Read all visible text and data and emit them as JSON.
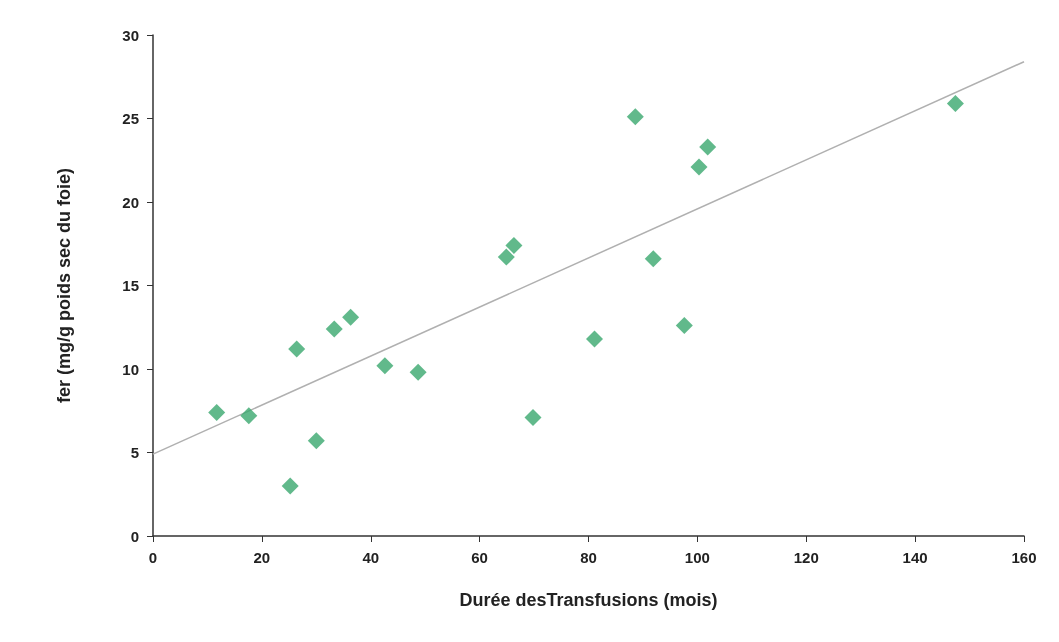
{
  "chart_data": {
    "type": "scatter",
    "xlabel": "Durée desTransfusions (mois)",
    "ylabel": "fer (mg/g poids sec du foie)",
    "xlim": [
      0,
      160
    ],
    "xticks": [
      0,
      20,
      40,
      60,
      80,
      100,
      120,
      140,
      160
    ],
    "ylim": [
      0,
      30
    ],
    "yticks": [
      0,
      5,
      10,
      15,
      20,
      25,
      30
    ],
    "grid": false,
    "series": [
      {
        "marker": "diamond",
        "color": "#3aa86e",
        "x": [
          11.7,
          17.6,
          25.2,
          26.4,
          30.0,
          33.3,
          36.3,
          42.6,
          48.7,
          64.9,
          66.3,
          69.8,
          81.1,
          88.6,
          91.9,
          97.6,
          100.3,
          101.9,
          147.4
        ],
        "values": [
          7.4,
          7.2,
          3.0,
          11.2,
          5.7,
          12.4,
          13.1,
          10.2,
          9.8,
          16.7,
          17.4,
          7.1,
          11.8,
          25.1,
          16.6,
          12.6,
          22.1,
          23.3,
          25.9
        ]
      },
      {
        "type": "line",
        "color": "#b0b0b0",
        "x": [
          0,
          160
        ],
        "values": [
          4.9,
          28.4
        ]
      }
    ]
  }
}
